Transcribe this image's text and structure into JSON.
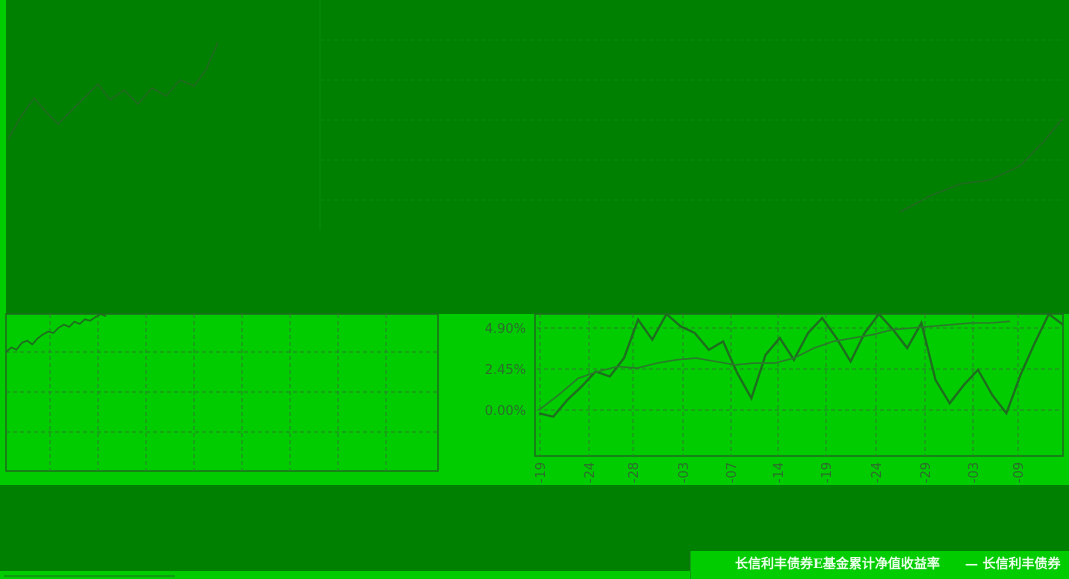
{
  "colors": {
    "overlay": "#008000",
    "plot_background": "#00cc00",
    "series_line": "#1f6b1f",
    "grid": "#2e7d2e",
    "legend_text": "#e8ffe8"
  },
  "chart_data": [
    {
      "type": "line",
      "panel": "left-fragment",
      "title": "",
      "xlabel": "",
      "ylabel": "",
      "y_tick_labels": [],
      "series": [
        {
          "values": [
            0.6,
            1.2,
            0.9,
            1.8,
            2.1,
            1.6,
            2.4,
            2.9,
            3.3,
            3.1,
            3.8,
            4.2,
            3.9,
            4.6,
            4.3,
            4.9,
            4.7,
            5.2,
            5.6,
            5.3
          ]
        }
      ],
      "grid": true
    },
    {
      "type": "line",
      "panel": "right-main",
      "title": "",
      "xlabel": "",
      "ylabel": "",
      "ylim": [
        -0.8,
        6.5
      ],
      "y_tick_labels": [
        "4.90%",
        "2.45%",
        "0.00%"
      ],
      "y_tick_values": [
        4.9,
        2.45,
        0.0
      ],
      "x_tick_labels": [
        "-19",
        "-24",
        "-28",
        "-03",
        "-07",
        "-14",
        "-19",
        "-24",
        "-29",
        "-03",
        "-09"
      ],
      "series": [
        {
          "name": "长信利丰债券E基金累计净值收益率",
          "values": [
            -0.2,
            -0.4,
            0.6,
            1.4,
            2.3,
            2.0,
            3.1,
            5.4,
            4.2,
            6.2,
            5.0,
            4.6,
            3.6,
            4.1,
            2.2,
            0.7,
            3.3,
            4.3,
            3.0,
            4.6,
            5.5,
            4.3,
            2.9,
            4.6,
            5.9,
            4.8,
            3.7,
            5.2,
            1.8,
            0.4,
            1.5,
            2.4,
            0.9,
            -0.2,
            2.1,
            4.0,
            6.1,
            5.1
          ]
        },
        {
          "name": "长信利丰债券",
          "values": [
            0.0,
            0.9,
            1.9,
            2.3,
            2.6,
            2.5,
            2.8,
            3.0,
            3.1,
            2.9,
            2.7,
            2.8,
            2.8,
            3.1,
            3.7,
            4.1,
            4.3,
            4.5,
            4.8,
            4.9,
            5.0,
            5.1,
            5.2,
            5.2,
            5.3
          ]
        }
      ],
      "grid": true
    }
  ],
  "legend": {
    "items": [
      "长信利丰债券E基金累计净值收益率",
      "— 长信利丰债券"
    ]
  }
}
